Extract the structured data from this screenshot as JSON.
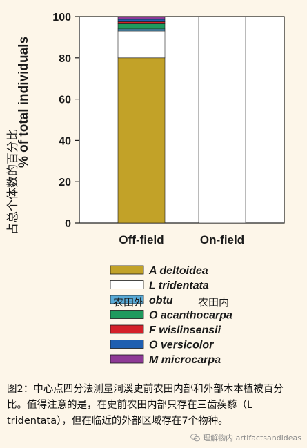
{
  "chart_data": {
    "type": "bar",
    "stacked": true,
    "categories": [
      "Off-field",
      "On-field"
    ],
    "series": [
      {
        "name": "A deltoidea",
        "color": "#c2a228",
        "values": [
          80,
          0
        ]
      },
      {
        "name": "L tridentata",
        "color": "#ffffff",
        "values": [
          13,
          100
        ]
      },
      {
        "name": "obtu",
        "color": "#5aaad6",
        "values": [
          1,
          0
        ]
      },
      {
        "name": "O acanthocarpa",
        "color": "#1f9a5e",
        "values": [
          2.5,
          0
        ]
      },
      {
        "name": "F wislinsensii",
        "color": "#d4202a",
        "values": [
          1,
          0
        ]
      },
      {
        "name": "O versicolor",
        "color": "#1f5fb0",
        "values": [
          1.2,
          0
        ]
      },
      {
        "name": "M microcarpa",
        "color": "#8e3a96",
        "values": [
          1.3,
          0
        ]
      }
    ],
    "ylim": [
      0,
      100
    ],
    "yticks": [
      "0",
      "20",
      "40",
      "60",
      "80",
      "100"
    ],
    "ylabel": "占总个体数的百分比",
    "ylabel_fragment": "% of total individuals",
    "grid": false,
    "legend_position": "bottom"
  },
  "overlay_labels": {
    "off_field": "农田外",
    "on_field": "农田内"
  },
  "caption": "图2：中心点四分法测量洞溪史前农田内部和外部木本植被百分比。值得注意的是，在史前农田内部只存在三齿蒺藜（L tridentata），但在临近的外部区域存在7个物种。",
  "watermark": "理解物内 artifactsandideas"
}
